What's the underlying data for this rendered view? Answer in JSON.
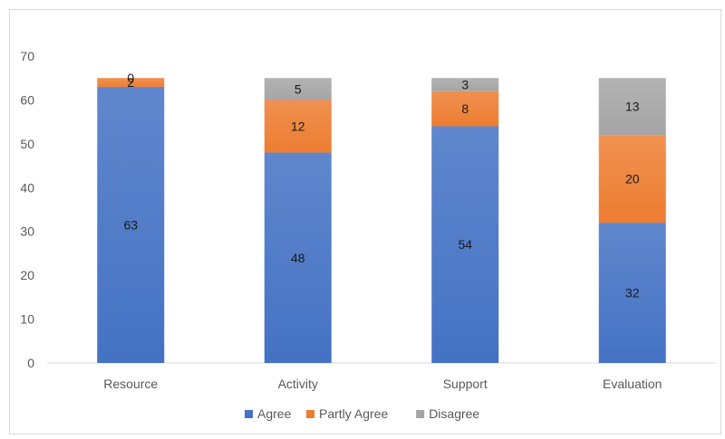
{
  "chart_data": {
    "type": "bar",
    "stacked": true,
    "categories": [
      "Resource",
      "Activity",
      "Support",
      "Evaluation"
    ],
    "series": [
      {
        "name": "Agree",
        "values": [
          63,
          48,
          54,
          32
        ],
        "color": "#4472c4"
      },
      {
        "name": "Partly Agree",
        "values": [
          2,
          12,
          8,
          20
        ],
        "color": "#ed7d31"
      },
      {
        "name": "Disagree",
        "values": [
          0,
          5,
          3,
          13
        ],
        "color": "#a5a5a5"
      }
    ],
    "ylim": [
      0,
      70
    ],
    "yticks": [
      0,
      10,
      20,
      30,
      40,
      50,
      60,
      70
    ],
    "legend_position": "bottom",
    "grid": false,
    "title": "",
    "xlabel": "",
    "ylabel": ""
  }
}
